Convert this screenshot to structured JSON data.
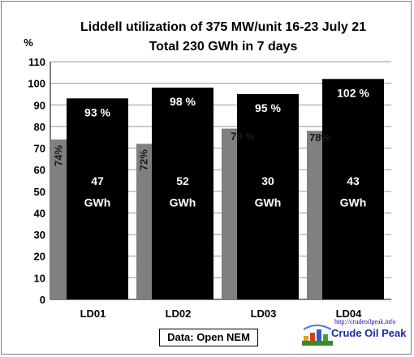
{
  "chart_data": {
    "type": "bar",
    "title": "Liddell utilization of 375 MW/unit 16-23 July 21",
    "subtitle": "Total 230 GWh in 7 days",
    "ylabel": "%",
    "ylim": [
      0,
      110
    ],
    "yticks": [
      "0",
      "10",
      "20",
      "30",
      "40",
      "50",
      "60",
      "70",
      "80",
      "90",
      "100",
      "110"
    ],
    "categories": [
      "LD01",
      "LD02",
      "LD03",
      "LD04"
    ],
    "grid": true,
    "series": [
      {
        "values": [
          74,
          72,
          79,
          78
        ],
        "labels": [
          "74%",
          "72%",
          "79 %",
          "78%"
        ],
        "color": "#808080"
      },
      {
        "values": [
          93,
          98,
          95,
          102
        ],
        "labels": [
          "93 %",
          "98 %",
          "95 %",
          "102 %"
        ],
        "color": "#000000"
      }
    ],
    "energy": [
      "47",
      "52",
      "30",
      "43"
    ],
    "energy_unit": "GWh"
  },
  "source": "Data: Open NEM",
  "logo": {
    "url": "http://crudeoilpeak.info",
    "name": "Crude Oil Peak"
  }
}
